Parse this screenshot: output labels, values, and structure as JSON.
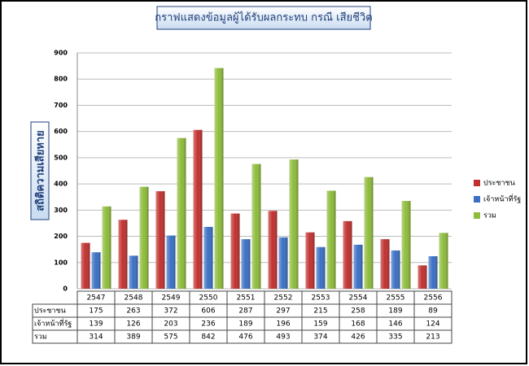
{
  "chart_data": {
    "type": "bar",
    "title": "กราฟแสดงข้อมูลผู้ได้รับผลกระทบ กรณี เสียชีวิต",
    "y_label": "สถิติความเสียหาย",
    "categories": [
      "2547",
      "2548",
      "2549",
      "2550",
      "2551",
      "2552",
      "2553",
      "2554",
      "2555",
      "2556"
    ],
    "series": [
      {
        "name": "ประชาชน",
        "color": "#c0302e",
        "values": [
          175,
          263,
          372,
          606,
          287,
          297,
          215,
          258,
          189,
          89
        ]
      },
      {
        "name": "เจ้าหน้าที่รัฐ",
        "color": "#3a6fc4",
        "values": [
          139,
          126,
          203,
          236,
          189,
          196,
          159,
          168,
          146,
          124
        ]
      },
      {
        "name": "รวม",
        "color": "#8dbb3a",
        "values": [
          314,
          389,
          575,
          842,
          476,
          493,
          374,
          426,
          335,
          213
        ]
      }
    ],
    "ylim": [
      0,
      900
    ],
    "yticks": [
      0,
      100,
      200,
      300,
      400,
      500,
      600,
      700,
      800,
      900
    ],
    "grid": true,
    "legend": "right"
  }
}
